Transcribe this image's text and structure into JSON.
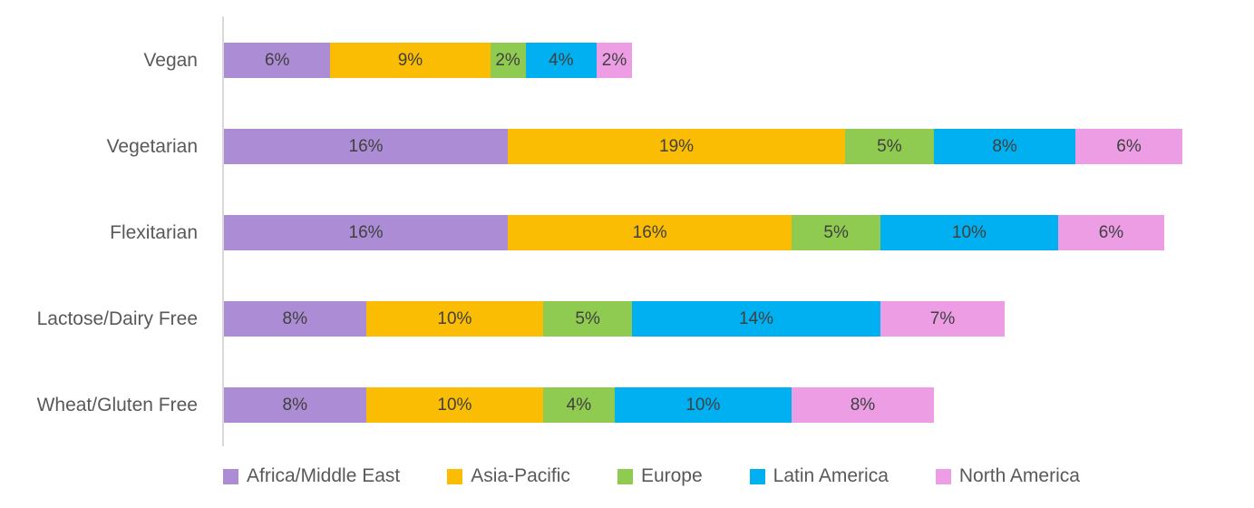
{
  "chart": {
    "background_color": "#FFFFFF",
    "axis_line_color": "#D9D9D9",
    "category_label_color": "#595959",
    "data_label_color": "#404040",
    "legend_label_color": "#595959"
  },
  "chart_data": {
    "type": "bar",
    "orientation": "horizontal",
    "stacked": true,
    "title": "",
    "xlabel": "",
    "ylabel": "",
    "value_unit": "%",
    "grid": false,
    "legend_position": "bottom",
    "categories": [
      "Vegan",
      "Vegetarian",
      "Flexitarian",
      "Lactose/Dairy Free",
      "Wheat/Gluten Free"
    ],
    "series": [
      {
        "name": "Africa/Middle East",
        "color": "#AC8CD4",
        "values": [
          6,
          16,
          16,
          8,
          8
        ],
        "labels": [
          "6%",
          "16%",
          "16%",
          "8%",
          "8%"
        ]
      },
      {
        "name": "Asia-Pacific",
        "color": "#FABD03",
        "values": [
          9,
          19,
          16,
          10,
          10
        ],
        "labels": [
          "9%",
          "19%",
          "16%",
          "10%",
          "10%"
        ]
      },
      {
        "name": "Europe",
        "color": "#8FCB50",
        "values": [
          2,
          5,
          5,
          5,
          4
        ],
        "labels": [
          "2%",
          "5%",
          "5%",
          "5%",
          "4%"
        ]
      },
      {
        "name": "Latin America",
        "color": "#00B0F0",
        "values": [
          4,
          8,
          10,
          14,
          10
        ],
        "labels": [
          "4%",
          "8%",
          "10%",
          "14%",
          "10%"
        ]
      },
      {
        "name": "North America",
        "color": "#EC9DE4",
        "values": [
          2,
          6,
          6,
          7,
          8
        ],
        "labels": [
          "2%",
          "6%",
          "6%",
          "7%",
          "8%"
        ]
      }
    ]
  }
}
